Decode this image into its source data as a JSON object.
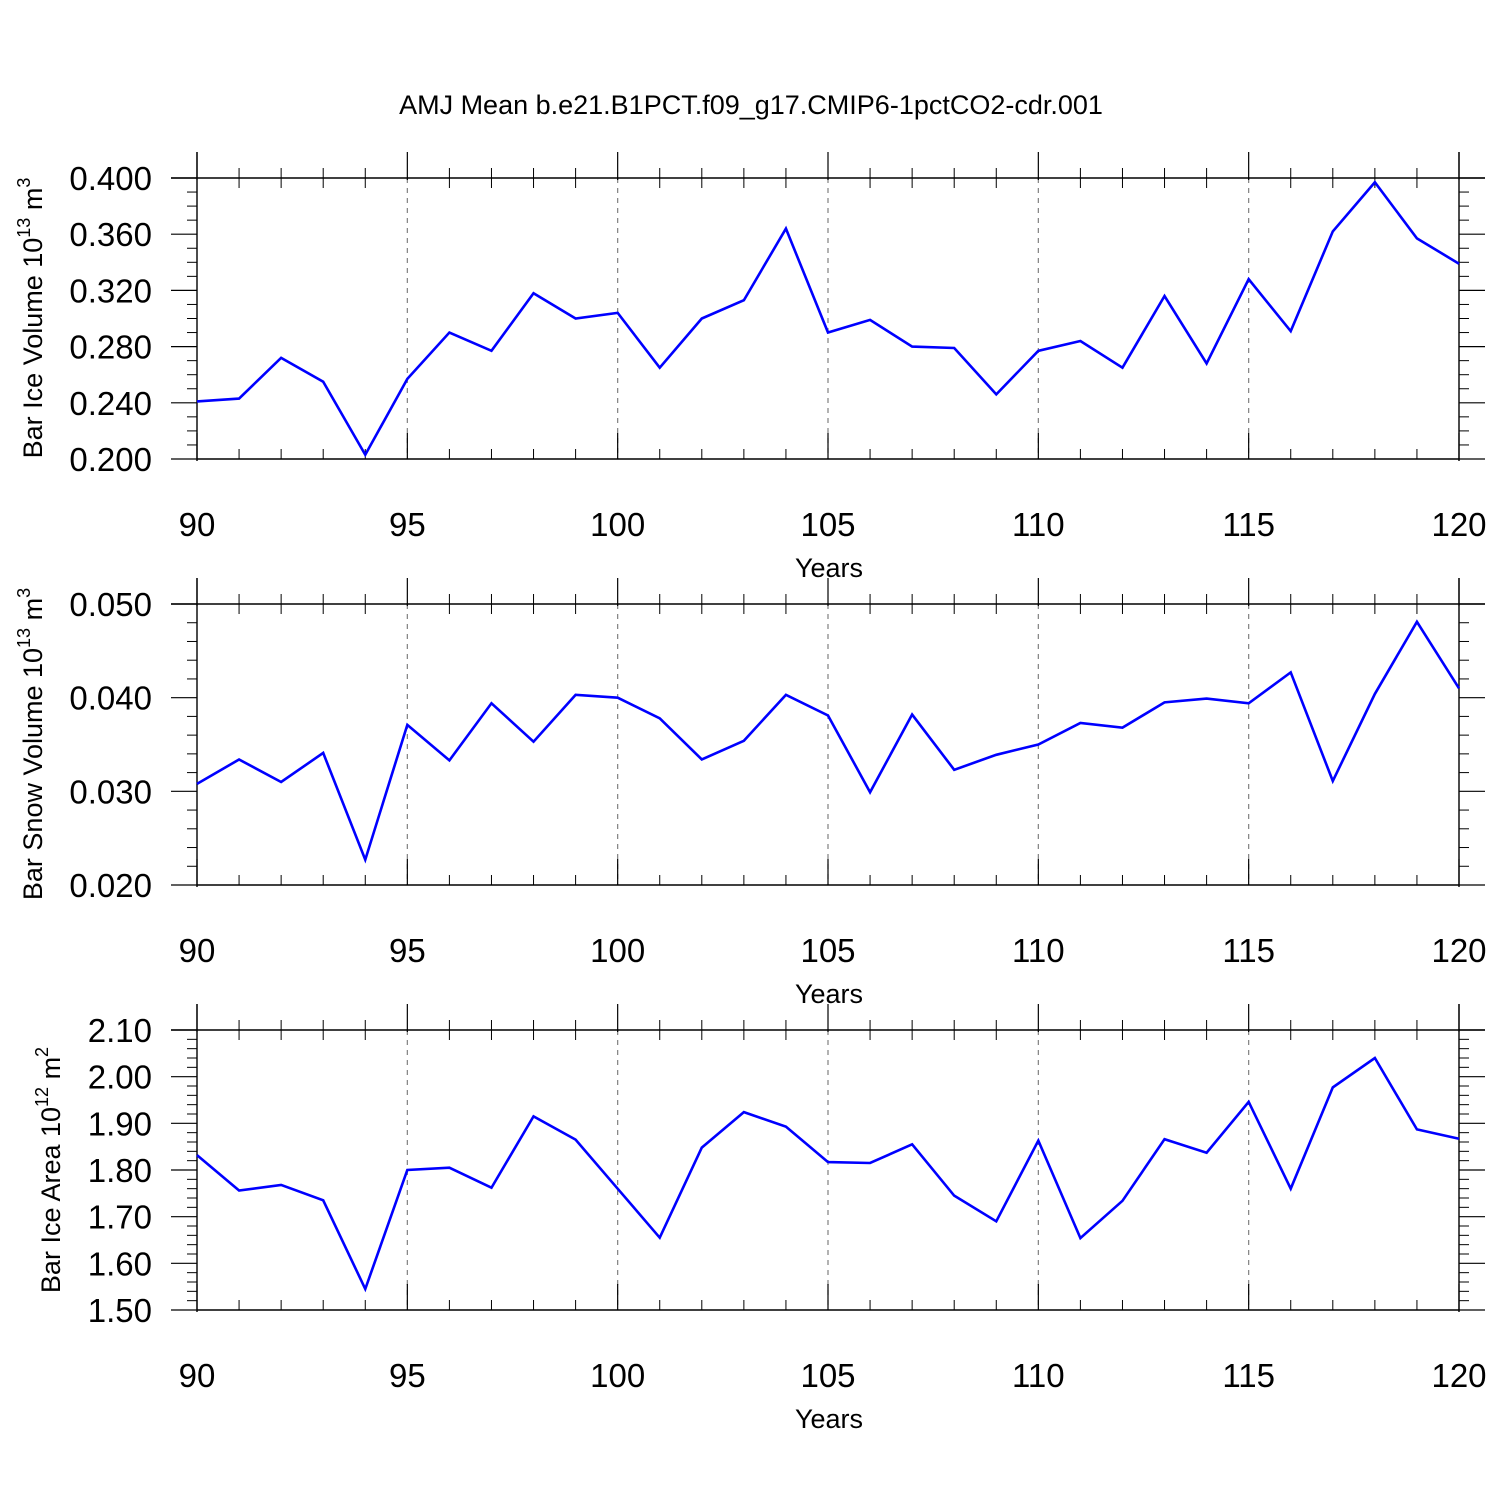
{
  "title": "AMJ Mean b.e21.B1PCT.f09_g17.CMIP6-1pctCO2-cdr.001",
  "colors": {
    "line": "#0000ff",
    "axis": "#000000",
    "grid": "#808080"
  },
  "chart_data": [
    {
      "type": "line",
      "ylabel": "Bar Ice Volume 10",
      "ylabel_exp": "13",
      "ylabel_unit": " m",
      "ylabel_unit_exp": "3",
      "xlabel": "Years",
      "xlim": [
        90,
        120
      ],
      "ylim": [
        0.2,
        0.4
      ],
      "yticks": [
        0.2,
        0.24,
        0.28,
        0.32,
        0.36,
        0.4
      ],
      "ytick_labels": [
        "0.200",
        "0.240",
        "0.280",
        "0.320",
        "0.360",
        "0.400"
      ],
      "ymajor_step": 0.04,
      "yminor_step": 0.01,
      "xticks": [
        90,
        95,
        100,
        105,
        110,
        115,
        120
      ],
      "xtick_labels": [
        "90",
        "95",
        "100",
        "105",
        "110",
        "115",
        "120"
      ],
      "x": [
        90,
        91,
        92,
        93,
        94,
        95,
        96,
        97,
        98,
        99,
        100,
        101,
        102,
        103,
        104,
        105,
        106,
        107,
        108,
        109,
        110,
        111,
        112,
        113,
        114,
        115,
        116,
        117,
        118,
        119,
        120
      ],
      "series": [
        {
          "name": "Bar Ice Volume",
          "values": [
            0.241,
            0.243,
            0.272,
            0.255,
            0.203,
            0.257,
            0.29,
            0.277,
            0.318,
            0.3,
            0.304,
            0.265,
            0.3,
            0.313,
            0.364,
            0.29,
            0.299,
            0.28,
            0.279,
            0.246,
            0.277,
            0.284,
            0.265,
            0.316,
            0.268,
            0.328,
            0.291,
            0.362,
            0.397,
            0.357,
            0.339
          ]
        }
      ]
    },
    {
      "type": "line",
      "ylabel": "Bar Snow Volume 10",
      "ylabel_exp": "13",
      "ylabel_unit": " m",
      "ylabel_unit_exp": "3",
      "xlabel": "Years",
      "xlim": [
        90,
        120
      ],
      "ylim": [
        0.02,
        0.05
      ],
      "yticks": [
        0.02,
        0.03,
        0.04,
        0.05
      ],
      "ytick_labels": [
        "0.020",
        "0.030",
        "0.040",
        "0.050"
      ],
      "ymajor_step": 0.01,
      "yminor_step": 0.002,
      "xticks": [
        90,
        95,
        100,
        105,
        110,
        115,
        120
      ],
      "xtick_labels": [
        "90",
        "95",
        "100",
        "105",
        "110",
        "115",
        "120"
      ],
      "x": [
        90,
        91,
        92,
        93,
        94,
        95,
        96,
        97,
        98,
        99,
        100,
        101,
        102,
        103,
        104,
        105,
        106,
        107,
        108,
        109,
        110,
        111,
        112,
        113,
        114,
        115,
        116,
        117,
        118,
        119,
        120
      ],
      "series": [
        {
          "name": "Bar Snow Volume",
          "values": [
            0.0308,
            0.0334,
            0.031,
            0.0341,
            0.0227,
            0.0371,
            0.0333,
            0.0394,
            0.0353,
            0.0403,
            0.04,
            0.0378,
            0.0334,
            0.0354,
            0.0403,
            0.0381,
            0.0299,
            0.0382,
            0.0323,
            0.0339,
            0.035,
            0.0373,
            0.0368,
            0.0395,
            0.0399,
            0.0394,
            0.0427,
            0.0311,
            0.0404,
            0.0481,
            0.041
          ]
        }
      ]
    },
    {
      "type": "line",
      "ylabel": "Bar Ice Area 10",
      "ylabel_exp": "12",
      "ylabel_unit": " m",
      "ylabel_unit_exp": "2",
      "xlabel": "Years",
      "xlim": [
        90,
        120
      ],
      "ylim": [
        1.5,
        2.1
      ],
      "yticks": [
        1.5,
        1.6,
        1.7,
        1.8,
        1.9,
        2.0,
        2.1
      ],
      "ytick_labels": [
        "1.50",
        "1.60",
        "1.70",
        "1.80",
        "1.90",
        "2.00",
        "2.10"
      ],
      "ymajor_step": 0.1,
      "yminor_step": 0.02,
      "xticks": [
        90,
        95,
        100,
        105,
        110,
        115,
        120
      ],
      "xtick_labels": [
        "90",
        "95",
        "100",
        "105",
        "110",
        "115",
        "120"
      ],
      "x": [
        90,
        91,
        92,
        93,
        94,
        95,
        96,
        97,
        98,
        99,
        100,
        101,
        102,
        103,
        104,
        105,
        106,
        107,
        108,
        109,
        110,
        111,
        112,
        113,
        114,
        115,
        116,
        117,
        118,
        119,
        120
      ],
      "series": [
        {
          "name": "Bar Ice Area",
          "values": [
            1.832,
            1.756,
            1.768,
            1.735,
            1.545,
            1.8,
            1.805,
            1.762,
            1.915,
            1.865,
            1.76,
            1.655,
            1.848,
            1.924,
            1.893,
            1.817,
            1.815,
            1.855,
            1.745,
            1.69,
            1.863,
            1.654,
            1.734,
            1.866,
            1.837,
            1.946,
            1.76,
            1.977,
            2.04,
            1.887,
            1.867
          ]
        }
      ]
    }
  ]
}
